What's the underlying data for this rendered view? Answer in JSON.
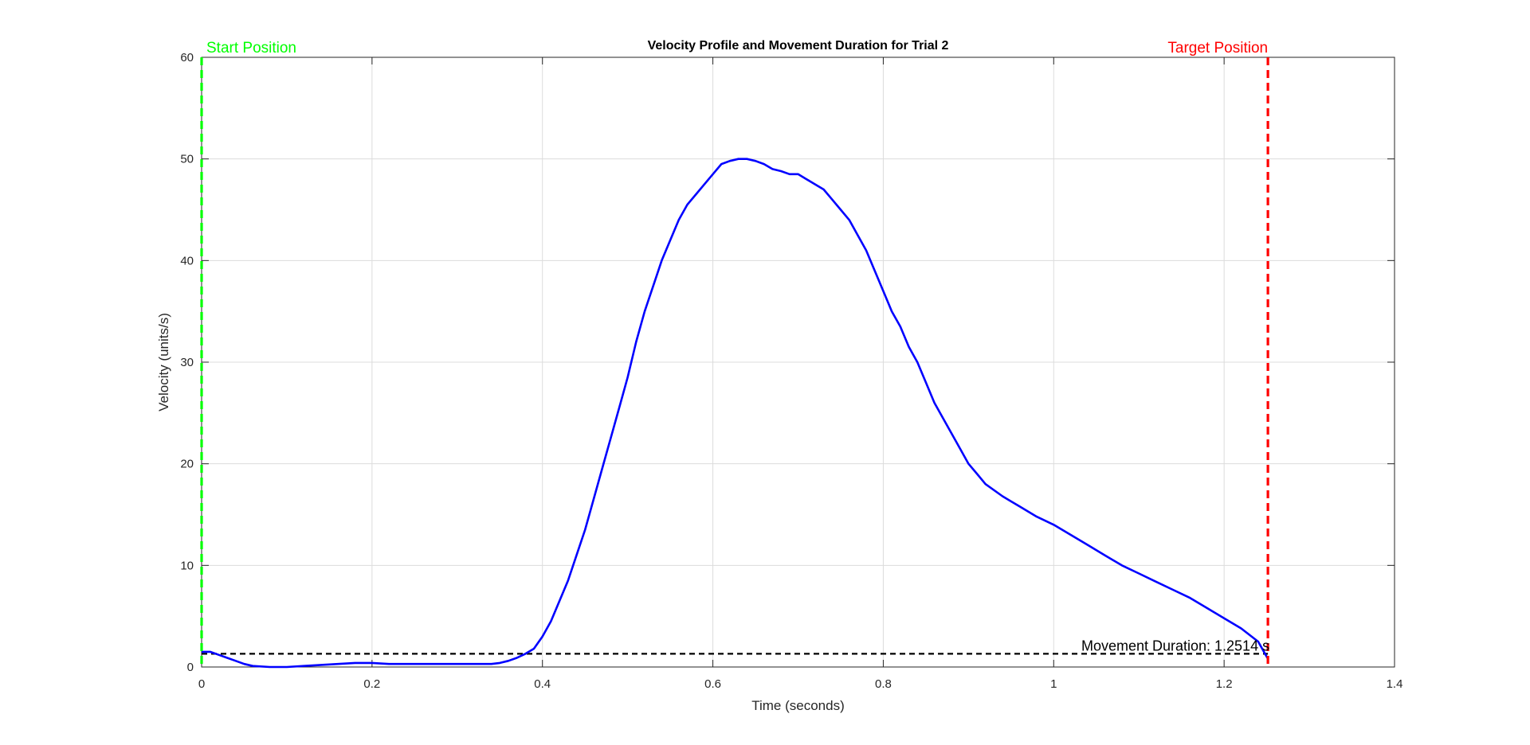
{
  "chart_data": {
    "type": "line",
    "title": "Velocity Profile and Movement Duration for Trial 2",
    "xlabel": "Time (seconds)",
    "ylabel": "Velocity (units/s)",
    "xlim": [
      0,
      1.4
    ],
    "ylim": [
      0,
      60
    ],
    "x_ticks": [
      0,
      0.2,
      0.4,
      0.6,
      0.8,
      1,
      1.2,
      1.4
    ],
    "x_tick_labels": [
      "0",
      "0.2",
      "0.4",
      "0.6",
      "0.8",
      "1",
      "1.2",
      "1.4"
    ],
    "y_ticks": [
      0,
      10,
      20,
      30,
      40,
      50,
      60
    ],
    "y_tick_labels": [
      "0",
      "10",
      "20",
      "30",
      "40",
      "50",
      "60"
    ],
    "grid": true,
    "series": [
      {
        "color": "#0000ff",
        "x": [
          0,
          0.01,
          0.02,
          0.03,
          0.04,
          0.05,
          0.06,
          0.08,
          0.1,
          0.12,
          0.14,
          0.16,
          0.18,
          0.2,
          0.22,
          0.24,
          0.26,
          0.28,
          0.3,
          0.32,
          0.34,
          0.35,
          0.36,
          0.37,
          0.38,
          0.39,
          0.4,
          0.41,
          0.42,
          0.43,
          0.44,
          0.45,
          0.46,
          0.47,
          0.48,
          0.49,
          0.5,
          0.51,
          0.52,
          0.53,
          0.54,
          0.55,
          0.56,
          0.57,
          0.58,
          0.59,
          0.6,
          0.61,
          0.62,
          0.63,
          0.64,
          0.65,
          0.66,
          0.67,
          0.68,
          0.69,
          0.7,
          0.71,
          0.72,
          0.73,
          0.74,
          0.75,
          0.76,
          0.77,
          0.78,
          0.79,
          0.8,
          0.81,
          0.82,
          0.83,
          0.84,
          0.85,
          0.86,
          0.87,
          0.88,
          0.89,
          0.9,
          0.91,
          0.92,
          0.94,
          0.96,
          0.98,
          1,
          1.02,
          1.04,
          1.06,
          1.08,
          1.1,
          1.12,
          1.14,
          1.16,
          1.18,
          1.2,
          1.22,
          1.24,
          1.2514
        ],
        "y": [
          1.5,
          1.5,
          1.2,
          0.9,
          0.6,
          0.3,
          0.1,
          0,
          0,
          0.1,
          0.2,
          0.3,
          0.4,
          0.4,
          0.3,
          0.3,
          0.3,
          0.3,
          0.3,
          0.3,
          0.3,
          0.4,
          0.6,
          0.9,
          1.3,
          1.8,
          3,
          4.5,
          6.5,
          8.5,
          11,
          13.5,
          16.5,
          19.5,
          22.5,
          25.5,
          28.5,
          32,
          35,
          37.5,
          40,
          42,
          44,
          45.5,
          46.5,
          47.5,
          48.5,
          49.5,
          49.8,
          50,
          50,
          49.8,
          49.5,
          49,
          48.8,
          48.5,
          48.5,
          48,
          47.5,
          47,
          46,
          45,
          44,
          42.5,
          41,
          39,
          37,
          35,
          33.5,
          31.5,
          30,
          28,
          26,
          24.5,
          23,
          21.5,
          20,
          19,
          18,
          16.8,
          15.8,
          14.8,
          14,
          13,
          12,
          11,
          10,
          9.2,
          8.4,
          7.6,
          6.8,
          5.8,
          4.8,
          3.8,
          2.5,
          0.8
        ]
      }
    ],
    "threshold_line": {
      "y": 1.3,
      "x_end": 1.2514,
      "color": "#000000"
    },
    "start_marker": {
      "x": 0,
      "label": "Start Position",
      "color": "#00ff00"
    },
    "target_marker": {
      "x": 1.2514,
      "label": "Target Position",
      "color": "#ff0000"
    },
    "annotation": {
      "text": "Movement Duration: 1.2514 s"
    }
  }
}
